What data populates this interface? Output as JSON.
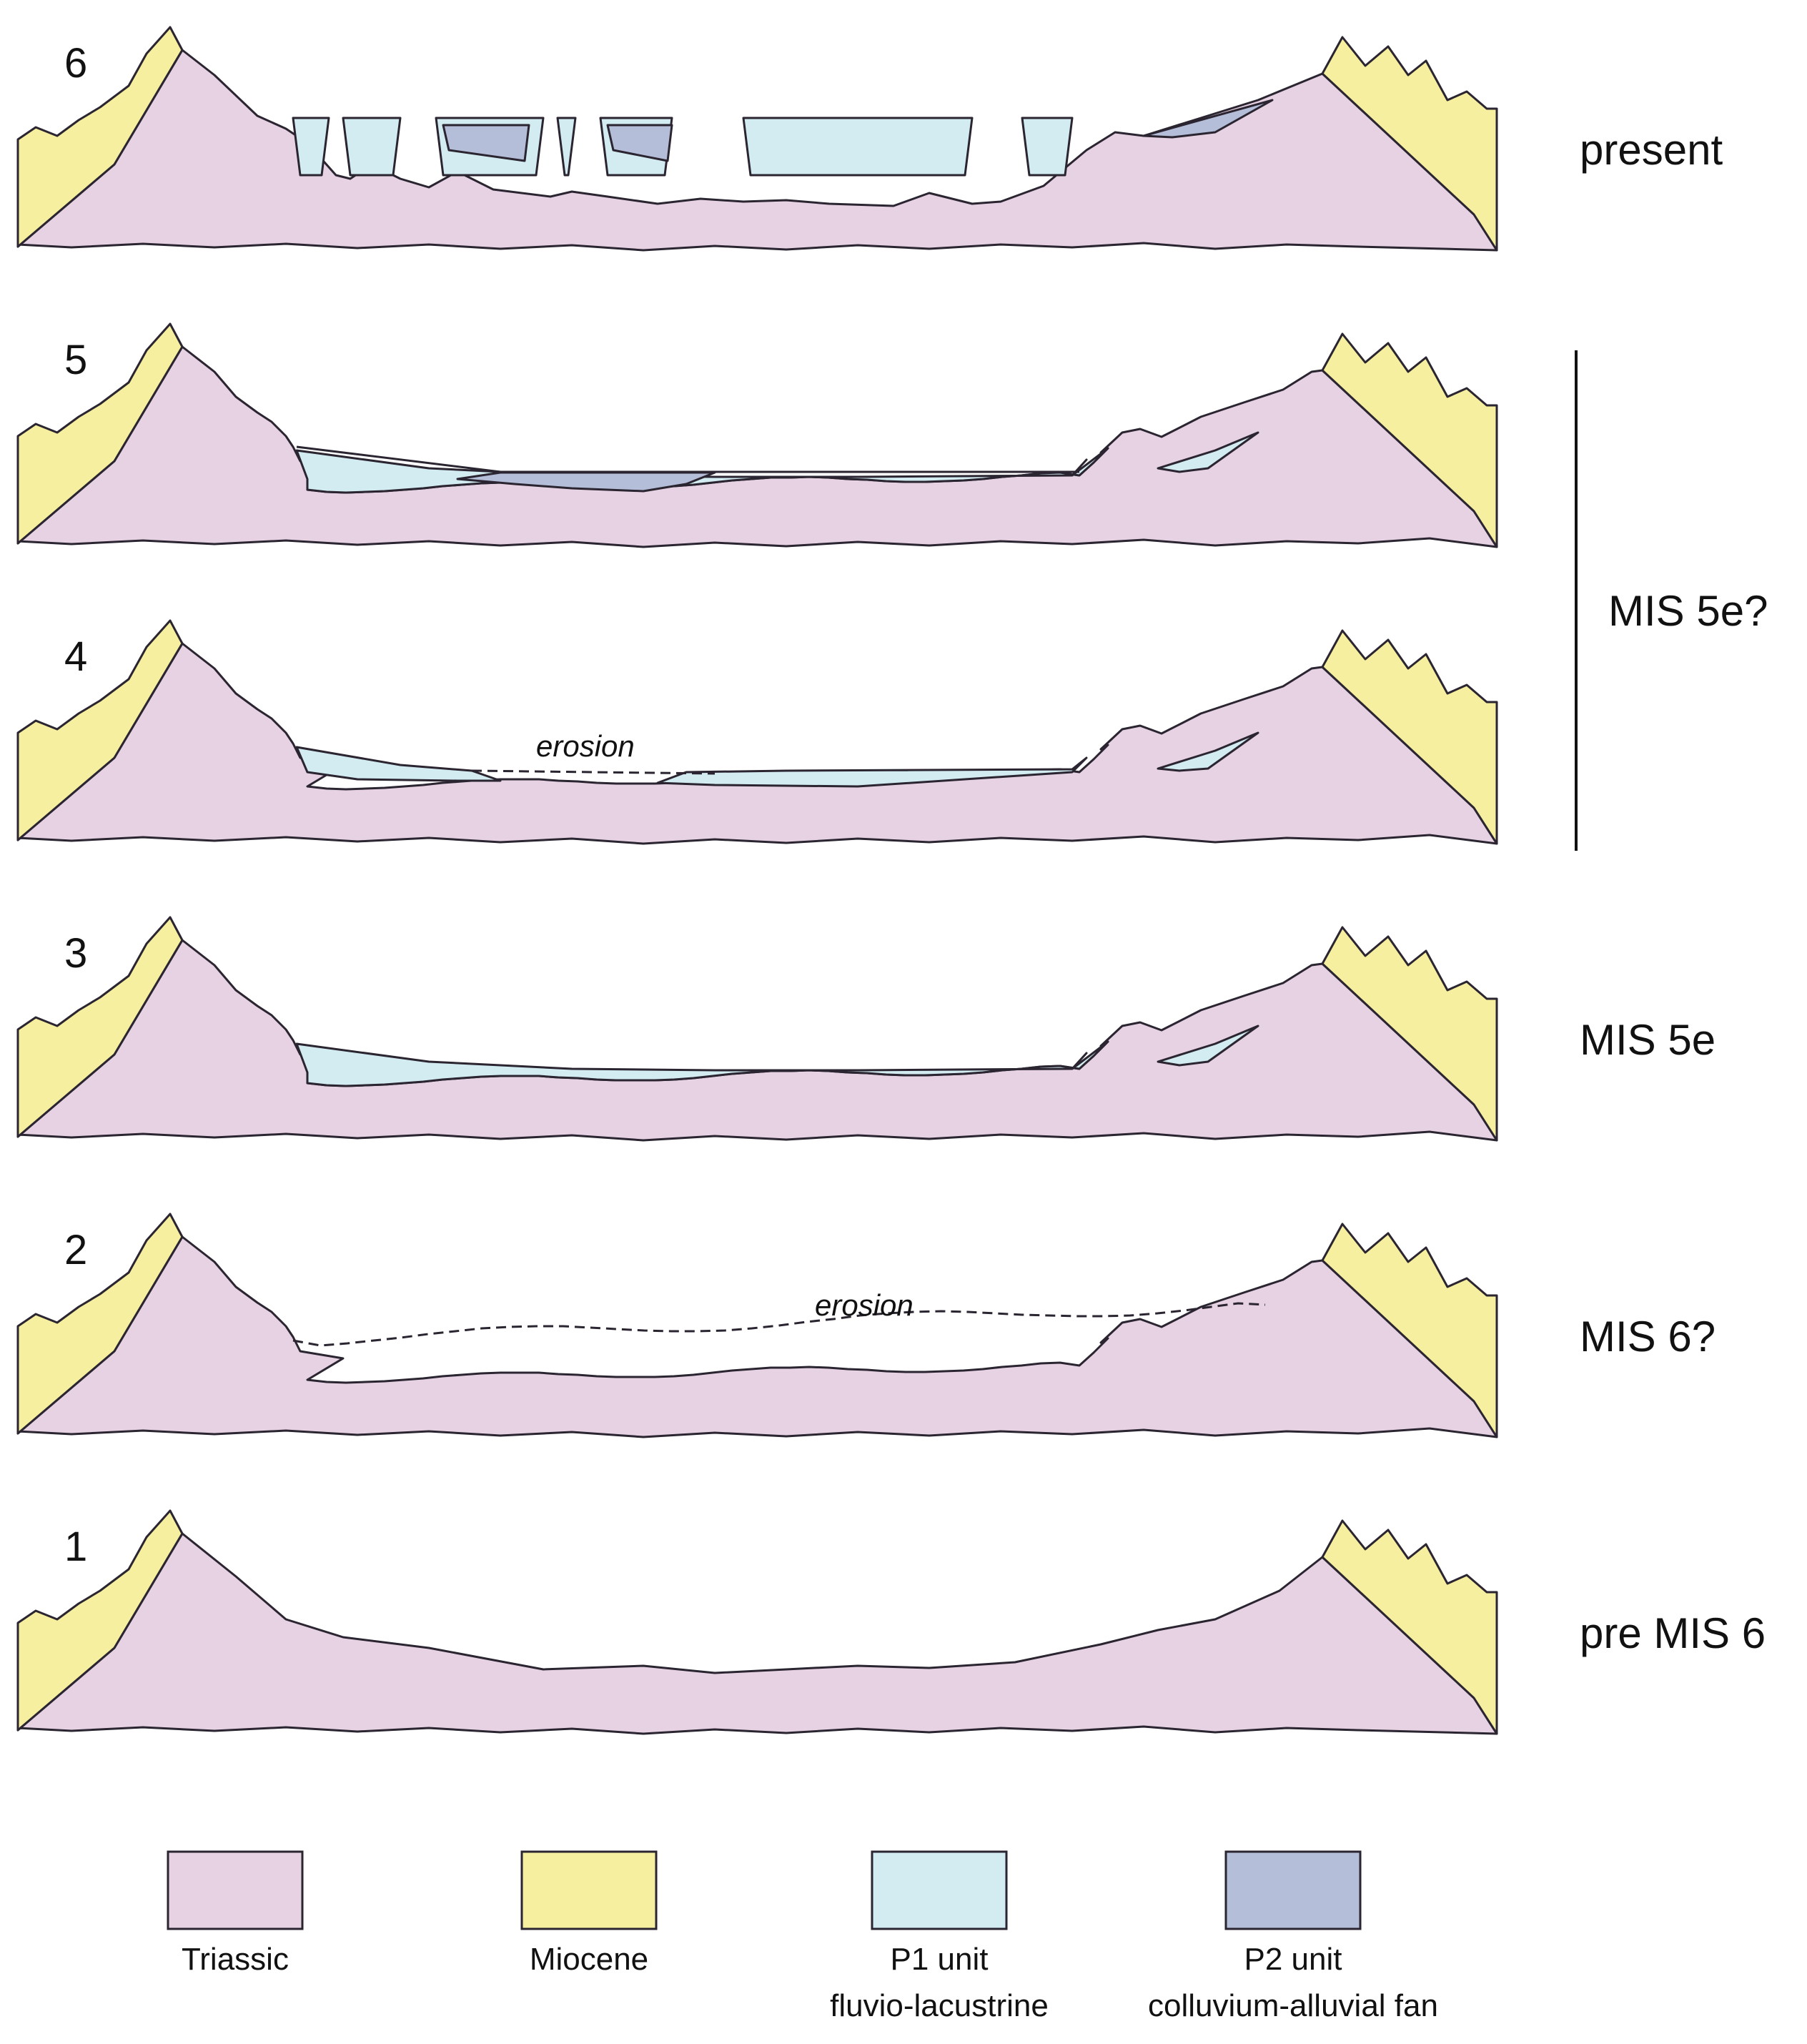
{
  "colors": {
    "triassic": "#e6d2e2",
    "miocene": "#f5ef9f",
    "p1": "#d3ecf1",
    "p2": "#b5bed8",
    "outline": "#2a2530"
  },
  "panels": [
    {
      "number": "6",
      "label": "present",
      "erosion": ""
    },
    {
      "number": "5",
      "label": "",
      "erosion": ""
    },
    {
      "number": "4",
      "label": "",
      "erosion": "erosion"
    },
    {
      "number": "3",
      "label": "MIS 5e",
      "erosion": ""
    },
    {
      "number": "2",
      "label": "MIS 6?",
      "erosion": "erosion"
    },
    {
      "number": "1",
      "label": "pre MIS 6",
      "erosion": ""
    }
  ],
  "bracket_label": "MIS 5e?",
  "legend": [
    {
      "key": "triassic",
      "line1": "Triassic",
      "line2": ""
    },
    {
      "key": "miocene",
      "line1": "Miocene",
      "line2": ""
    },
    {
      "key": "p1",
      "line1": "P1 unit",
      "line2": "fluvio-lacustrine"
    },
    {
      "key": "p2",
      "line1": "P2 unit",
      "line2": "colluvium-alluvial fan"
    }
  ]
}
